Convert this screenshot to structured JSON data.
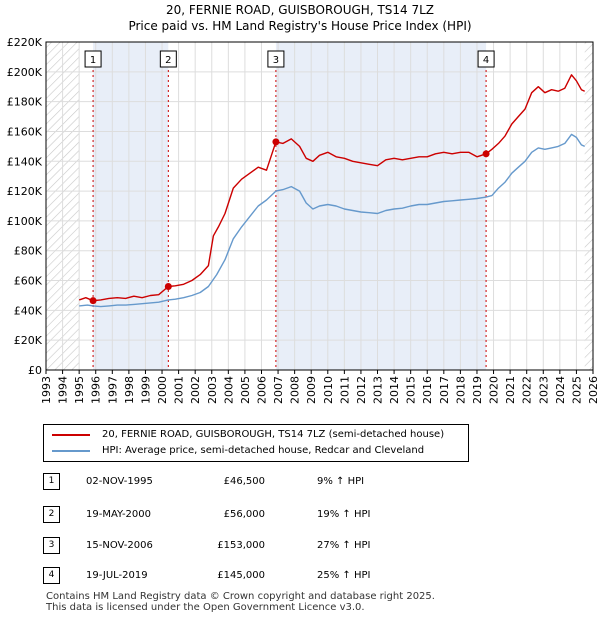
{
  "title_line1": "20, FERNIE ROAD, GUISBOROUGH, TS14 7LZ",
  "title_line2": "Price paid vs. HM Land Registry's House Price Index (HPI)",
  "colors": {
    "red": "#cc0000",
    "blue": "#6699cc",
    "shade": "#e8eef8",
    "hatch": "#c8c8c8",
    "grid": "#dddddd",
    "marker_line": "#cc0000"
  },
  "legend": {
    "property_label": "20, FERNIE ROAD, GUISBOROUGH, TS14 7LZ (semi-detached house)",
    "hpi_label": "HPI: Average price, semi-detached house, Redcar and Cleveland"
  },
  "sales": [
    {
      "num": "1",
      "date": "02-NOV-1995",
      "price": "£46,500",
      "hpi": "9% ↑ HPI"
    },
    {
      "num": "2",
      "date": "19-MAY-2000",
      "price": "£56,000",
      "hpi": "19% ↑ HPI"
    },
    {
      "num": "3",
      "date": "15-NOV-2006",
      "price": "£153,000",
      "hpi": "27% ↑ HPI"
    },
    {
      "num": "4",
      "date": "19-JUL-2019",
      "price": "£145,000",
      "hpi": "25% ↑ HPI"
    }
  ],
  "footer": {
    "line1": "Contains HM Land Registry data © Crown copyright and database right 2025.",
    "line2": "This data is licensed under the Open Government Licence v3.0."
  },
  "chart_data": {
    "type": "line",
    "title": "20, FERNIE ROAD, GUISBOROUGH, TS14 7LZ — Price paid vs. HM Land Registry's House Price Index (HPI)",
    "xlim": [
      1993,
      2026
    ],
    "ylim": [
      0,
      220000
    ],
    "x_ticks": [
      1993,
      1994,
      1995,
      1996,
      1997,
      1998,
      1999,
      2000,
      2001,
      2002,
      2003,
      2004,
      2005,
      2006,
      2007,
      2008,
      2009,
      2010,
      2011,
      2012,
      2013,
      2014,
      2015,
      2016,
      2017,
      2018,
      2019,
      2020,
      2021,
      2022,
      2023,
      2024,
      2025,
      2026
    ],
    "y_ticks": [
      {
        "value": 0,
        "label": "£0"
      },
      {
        "value": 20000,
        "label": "£20K"
      },
      {
        "value": 40000,
        "label": "£40K"
      },
      {
        "value": 60000,
        "label": "£60K"
      },
      {
        "value": 80000,
        "label": "£80K"
      },
      {
        "value": 100000,
        "label": "£100K"
      },
      {
        "value": 120000,
        "label": "£120K"
      },
      {
        "value": 140000,
        "label": "£140K"
      },
      {
        "value": 160000,
        "label": "£160K"
      },
      {
        "value": 180000,
        "label": "£180K"
      },
      {
        "value": 200000,
        "label": "£200K"
      },
      {
        "value": 220000,
        "label": "£220K"
      }
    ],
    "hatched_ranges": [
      [
        1993,
        1995.0
      ],
      [
        2025.5,
        2026
      ]
    ],
    "shaded_ranges": [
      [
        1995.84,
        2000.38
      ],
      [
        2006.87,
        2019.55
      ]
    ],
    "markers": [
      {
        "label": "1",
        "x": 1995.84,
        "y": 46500
      },
      {
        "label": "2",
        "x": 2000.38,
        "y": 56000
      },
      {
        "label": "3",
        "x": 2006.87,
        "y": 153000
      },
      {
        "label": "4",
        "x": 2019.55,
        "y": 145000
      }
    ],
    "series": [
      {
        "name": "20, FERNIE ROAD, GUISBOROUGH, TS14 7LZ (semi-detached house)",
        "color": "#cc0000",
        "points": [
          [
            1995.0,
            47000
          ],
          [
            1995.4,
            48500
          ],
          [
            1995.84,
            46500
          ],
          [
            1996.3,
            47000
          ],
          [
            1996.8,
            48000
          ],
          [
            1997.3,
            48500
          ],
          [
            1997.8,
            48000
          ],
          [
            1998.3,
            49500
          ],
          [
            1998.8,
            48500
          ],
          [
            1999.3,
            50000
          ],
          [
            1999.8,
            50500
          ],
          [
            2000.38,
            56000
          ],
          [
            2000.8,
            56500
          ],
          [
            2001.3,
            57500
          ],
          [
            2001.8,
            60000
          ],
          [
            2002.3,
            64000
          ],
          [
            2002.8,
            70000
          ],
          [
            2003.1,
            90000
          ],
          [
            2003.4,
            96000
          ],
          [
            2003.8,
            105000
          ],
          [
            2004.3,
            122000
          ],
          [
            2004.8,
            128000
          ],
          [
            2005.3,
            132000
          ],
          [
            2005.8,
            136000
          ],
          [
            2006.3,
            134000
          ],
          [
            2006.87,
            153000
          ],
          [
            2007.3,
            152000
          ],
          [
            2007.8,
            155000
          ],
          [
            2008.3,
            150000
          ],
          [
            2008.7,
            142000
          ],
          [
            2009.1,
            140000
          ],
          [
            2009.5,
            144000
          ],
          [
            2010.0,
            146000
          ],
          [
            2010.5,
            143000
          ],
          [
            2011.0,
            142000
          ],
          [
            2011.5,
            140000
          ],
          [
            2012.0,
            139000
          ],
          [
            2012.5,
            138000
          ],
          [
            2013.0,
            137000
          ],
          [
            2013.5,
            141000
          ],
          [
            2014.0,
            142000
          ],
          [
            2014.5,
            141000
          ],
          [
            2015.0,
            142000
          ],
          [
            2015.5,
            143000
          ],
          [
            2016.0,
            143000
          ],
          [
            2016.5,
            145000
          ],
          [
            2017.0,
            146000
          ],
          [
            2017.5,
            145000
          ],
          [
            2018.0,
            146000
          ],
          [
            2018.5,
            146000
          ],
          [
            2019.0,
            143000
          ],
          [
            2019.55,
            145000
          ],
          [
            2019.9,
            148000
          ],
          [
            2020.3,
            152000
          ],
          [
            2020.7,
            157000
          ],
          [
            2021.1,
            165000
          ],
          [
            2021.5,
            170000
          ],
          [
            2021.9,
            175000
          ],
          [
            2022.3,
            186000
          ],
          [
            2022.7,
            190000
          ],
          [
            2023.1,
            186000
          ],
          [
            2023.5,
            188000
          ],
          [
            2023.9,
            187000
          ],
          [
            2024.3,
            189000
          ],
          [
            2024.7,
            198000
          ],
          [
            2025.0,
            194000
          ],
          [
            2025.3,
            188000
          ],
          [
            2025.5,
            187000
          ]
        ]
      },
      {
        "name": "HPI: Average price, semi-detached house, Redcar and Cleveland",
        "color": "#6699cc",
        "points": [
          [
            1995.0,
            43000
          ],
          [
            1995.5,
            43500
          ],
          [
            1995.84,
            43000
          ],
          [
            1996.3,
            42500
          ],
          [
            1996.8,
            43000
          ],
          [
            1997.3,
            43500
          ],
          [
            1997.8,
            43500
          ],
          [
            1998.3,
            44000
          ],
          [
            1998.8,
            44500
          ],
          [
            1999.3,
            45000
          ],
          [
            1999.8,
            45500
          ],
          [
            2000.38,
            47000
          ],
          [
            2000.8,
            47500
          ],
          [
            2001.3,
            48500
          ],
          [
            2001.8,
            50000
          ],
          [
            2002.3,
            52000
          ],
          [
            2002.8,
            56000
          ],
          [
            2003.3,
            64000
          ],
          [
            2003.8,
            74000
          ],
          [
            2004.3,
            88000
          ],
          [
            2004.8,
            96000
          ],
          [
            2005.3,
            103000
          ],
          [
            2005.8,
            110000
          ],
          [
            2006.3,
            114000
          ],
          [
            2006.87,
            120000
          ],
          [
            2007.3,
            121000
          ],
          [
            2007.8,
            123000
          ],
          [
            2008.3,
            120000
          ],
          [
            2008.7,
            112000
          ],
          [
            2009.1,
            108000
          ],
          [
            2009.5,
            110000
          ],
          [
            2010.0,
            111000
          ],
          [
            2010.5,
            110000
          ],
          [
            2011.0,
            108000
          ],
          [
            2011.5,
            107000
          ],
          [
            2012.0,
            106000
          ],
          [
            2012.5,
            105500
          ],
          [
            2013.0,
            105000
          ],
          [
            2013.5,
            107000
          ],
          [
            2014.0,
            108000
          ],
          [
            2014.5,
            108500
          ],
          [
            2015.0,
            110000
          ],
          [
            2015.5,
            111000
          ],
          [
            2016.0,
            111000
          ],
          [
            2016.5,
            112000
          ],
          [
            2017.0,
            113000
          ],
          [
            2017.5,
            113500
          ],
          [
            2018.0,
            114000
          ],
          [
            2018.5,
            114500
          ],
          [
            2019.0,
            115000
          ],
          [
            2019.55,
            116000
          ],
          [
            2019.9,
            117000
          ],
          [
            2020.3,
            122000
          ],
          [
            2020.7,
            126000
          ],
          [
            2021.1,
            132000
          ],
          [
            2021.5,
            136000
          ],
          [
            2021.9,
            140000
          ],
          [
            2022.3,
            146000
          ],
          [
            2022.7,
            149000
          ],
          [
            2023.1,
            148000
          ],
          [
            2023.5,
            149000
          ],
          [
            2023.9,
            150000
          ],
          [
            2024.3,
            152000
          ],
          [
            2024.7,
            158000
          ],
          [
            2025.0,
            156000
          ],
          [
            2025.3,
            151000
          ],
          [
            2025.5,
            150000
          ]
        ]
      }
    ]
  }
}
